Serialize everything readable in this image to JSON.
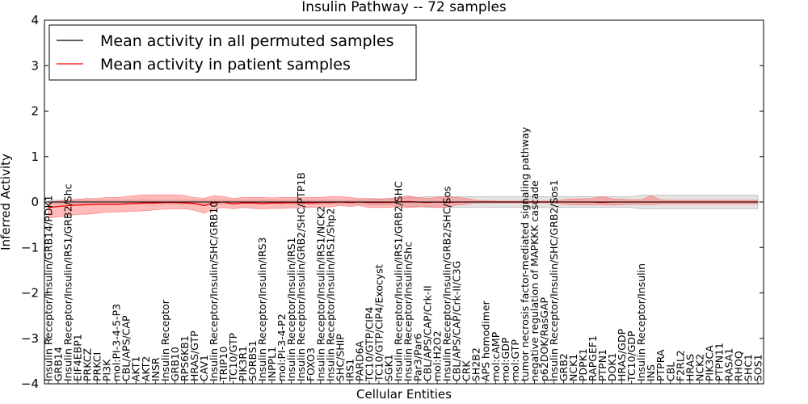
{
  "chart_data": {
    "type": "line",
    "title": "Insulin Pathway -- 72 samples",
    "xlabel": "Cellular Entities",
    "ylabel": "Inferred Activity",
    "ylim": [
      -4,
      4
    ],
    "yticks": [
      "−4",
      "−3",
      "−2",
      "−1",
      "0",
      "1",
      "2",
      "3",
      "4"
    ],
    "grid": false,
    "legend": {
      "position": "top-left",
      "entries": [
        {
          "label": "Mean activity in all permuted samples",
          "color": "#000000"
        },
        {
          "label": "Mean activity in patient samples",
          "color": "#ff0000"
        }
      ]
    },
    "categories": [
      "Insulin Receptor/Insulin/GRB14/PDK1",
      "GRB14",
      "Insulin Receptor/Insulin/IRS1/GRB2/Shc",
      "EIF4EBP1",
      "PRKCZ",
      "PRKCI",
      "PI3K",
      "mol:PI-3-4-5-P3",
      "CBL/APS/CAP",
      "AKT1",
      "AKT2",
      "INSR",
      "Insulin Receptor",
      "GRB10",
      "RPS6KB1",
      "HRAS/GTP",
      "CAV1",
      "Insulin Receptor/Insulin/SHC/GRB10",
      "TRIP10",
      "TC10/GTP",
      "PIK3R1",
      "SORBS1",
      "Insulin Receptor/Insulin/IRS3",
      "INPPL1",
      "mol:PI-3-4-P2",
      "Insulin Receptor/Insulin/IRS1",
      "Insulin Receptor/Insulin/GRB2/SHC/PTP1B",
      "FOXO3",
      "Insulin Receptor/Insulin/IRS1/NCK2",
      "Insulin Receptor/Insulin/IRS1/Shp2",
      "SHC/SHIP",
      "IRS1",
      "PARD6A",
      "TC10/GTP/CIP4",
      "TC10/GTP/CIP4/Exocyst",
      "SGK1",
      "Insulin Receptor/Insulin/IRS1/GRB2/SHC",
      "Insulin Receptor/Insulin/Shc",
      "Par3/Par6",
      "CBL/APS/CAP/Crk-II",
      "mol:H2O2",
      "Insulin Receptor/Insulin/GRB2/SHC/Sos",
      "CBL/APS/CAP/Crk-II/C3G",
      "CRK",
      "SH2B2",
      "APS homodimer",
      "mol:cAMP",
      "mol:GDP",
      "mol:GTP",
      "tumor necrosis factor-mediated signaling pathway",
      "negative regulation of MAPKKK cascade",
      "p62DOK/RasGAP",
      "Insulin Receptor/Insulin/SHC/GRB2/Sos1",
      "GRB2",
      "NCK1",
      "PDPK1",
      "RAPGEF1",
      "PTPN1",
      "DOK1",
      "HRAS/GDP",
      "TC10/GDP",
      "Insulin Receptor/Insulin",
      "INS",
      "PTPRA",
      "CBL",
      "F2RL2",
      "HRAS",
      "NCK2",
      "PIK3CA",
      "PTPN11",
      "RASA1",
      "RHOQ",
      "SHC1",
      "SOS1"
    ],
    "series": [
      {
        "name": "Mean activity in all permuted samples",
        "color": "#000000",
        "values": [
          0.0,
          0.0,
          0.0,
          0.0,
          0.0,
          0.0,
          0.0,
          0.0,
          0.0,
          0.0,
          0.0,
          0.0,
          0.0,
          0.0,
          0.0,
          0.0,
          0.0,
          0.0,
          0.0,
          0.0,
          0.0,
          0.0,
          0.0,
          0.0,
          0.0,
          0.0,
          0.0,
          0.0,
          0.0,
          0.0,
          0.0,
          0.0,
          0.0,
          0.0,
          0.0,
          0.0,
          0.0,
          0.0,
          0.0,
          0.0,
          0.0,
          0.0,
          0.0,
          0.0,
          0.0,
          0.0,
          0.0,
          0.0,
          0.0,
          0.0,
          0.0,
          0.0,
          0.0,
          0.0,
          0.0,
          0.0,
          0.0,
          0.0,
          0.0,
          0.0,
          0.0,
          0.0,
          0.0,
          0.0,
          0.0,
          0.0,
          0.0,
          0.0,
          0.0,
          0.0,
          0.0,
          0.0,
          0.0,
          0.0
        ],
        "band_low": [
          -0.04,
          -0.04,
          -0.04,
          -0.04,
          -0.04,
          -0.04,
          -0.04,
          -0.04,
          -0.04,
          -0.04,
          -0.04,
          -0.04,
          -0.04,
          -0.04,
          -0.04,
          -0.04,
          -0.04,
          -0.04,
          -0.04,
          -0.04,
          -0.04,
          -0.04,
          -0.04,
          -0.04,
          -0.04,
          -0.04,
          -0.04,
          -0.04,
          -0.04,
          -0.04,
          -0.04,
          -0.04,
          -0.04,
          -0.06,
          -0.06,
          -0.06,
          -0.08,
          -0.1,
          -0.1,
          -0.12,
          -0.12,
          -0.12,
          -0.12,
          -0.12,
          -0.12,
          -0.12,
          -0.12,
          -0.12,
          -0.12,
          -0.12,
          -0.12,
          -0.12,
          -0.12,
          -0.12,
          -0.12,
          -0.12,
          -0.12,
          -0.12,
          -0.12,
          -0.12,
          -0.12,
          -0.15,
          -0.15,
          -0.15,
          -0.15,
          -0.15,
          -0.15,
          -0.15,
          -0.15,
          -0.15,
          -0.15,
          -0.15,
          -0.15,
          -0.15
        ],
        "band_high": [
          0.04,
          0.04,
          0.04,
          0.04,
          0.04,
          0.04,
          0.04,
          0.04,
          0.04,
          0.04,
          0.04,
          0.04,
          0.04,
          0.04,
          0.04,
          0.04,
          0.04,
          0.04,
          0.04,
          0.04,
          0.04,
          0.04,
          0.04,
          0.04,
          0.04,
          0.04,
          0.04,
          0.04,
          0.04,
          0.04,
          0.04,
          0.04,
          0.04,
          0.06,
          0.06,
          0.06,
          0.08,
          0.1,
          0.1,
          0.12,
          0.12,
          0.12,
          0.12,
          0.12,
          0.12,
          0.12,
          0.12,
          0.12,
          0.12,
          0.12,
          0.12,
          0.12,
          0.12,
          0.12,
          0.12,
          0.12,
          0.12,
          0.12,
          0.12,
          0.12,
          0.12,
          0.15,
          0.15,
          0.15,
          0.15,
          0.15,
          0.15,
          0.15,
          0.15,
          0.15,
          0.15,
          0.15,
          0.15,
          0.15
        ]
      },
      {
        "name": "Mean activity in patient samples",
        "color": "#ff0000",
        "values": [
          -0.12,
          -0.1,
          -0.08,
          -0.07,
          -0.06,
          -0.05,
          -0.05,
          -0.05,
          -0.04,
          -0.03,
          -0.02,
          -0.02,
          -0.01,
          -0.01,
          -0.02,
          -0.03,
          -0.08,
          -0.02,
          0.0,
          -0.04,
          -0.02,
          -0.02,
          -0.03,
          -0.02,
          -0.02,
          -0.01,
          -0.02,
          -0.02,
          -0.01,
          -0.01,
          0.0,
          -0.01,
          0.0,
          -0.01,
          -0.01,
          -0.01,
          0.0,
          0.01,
          0.0,
          -0.01,
          0.0,
          -0.01,
          0.0,
          0.0,
          0.0,
          0.0,
          0.0,
          0.0,
          0.0,
          0.0,
          0.0,
          0.0,
          0.0,
          0.0,
          0.0,
          0.0,
          0.0,
          -0.01,
          0.0,
          0.0,
          0.0,
          0.0,
          0.0,
          0.0,
          0.0,
          0.0,
          0.0,
          0.0,
          0.0,
          0.0,
          0.0,
          0.0,
          0.0,
          0.0
        ],
        "band_low": [
          -0.35,
          -0.33,
          -0.3,
          -0.27,
          -0.27,
          -0.25,
          -0.22,
          -0.22,
          -0.21,
          -0.2,
          -0.19,
          -0.17,
          -0.16,
          -0.15,
          -0.15,
          -0.18,
          -0.25,
          -0.15,
          -0.12,
          -0.15,
          -0.12,
          -0.14,
          -0.15,
          -0.14,
          -0.14,
          -0.13,
          -0.13,
          -0.12,
          -0.11,
          -0.11,
          -0.08,
          -0.1,
          -0.08,
          -0.12,
          -0.12,
          -0.12,
          -0.1,
          -0.12,
          -0.11,
          -0.1,
          -0.12,
          -0.11,
          -0.07,
          -0.05,
          -0.02,
          -0.02,
          -0.02,
          -0.02,
          -0.02,
          -0.02,
          -0.02,
          -0.02,
          -0.02,
          -0.05,
          -0.06,
          -0.06,
          -0.06,
          -0.06,
          -0.07,
          -0.06,
          -0.05,
          -0.05,
          -0.06,
          -0.04,
          -0.04,
          -0.04,
          -0.04,
          -0.04,
          -0.04,
          -0.04,
          -0.04,
          -0.04,
          -0.04,
          -0.04
        ],
        "band_high": [
          0.0,
          0.02,
          0.04,
          0.06,
          0.08,
          0.08,
          0.1,
          0.1,
          0.12,
          0.14,
          0.16,
          0.16,
          0.16,
          0.16,
          0.14,
          0.1,
          0.08,
          0.14,
          0.12,
          0.08,
          0.1,
          0.1,
          0.1,
          0.09,
          0.1,
          0.1,
          0.1,
          0.1,
          0.1,
          0.12,
          0.12,
          0.1,
          0.08,
          0.08,
          0.07,
          0.08,
          0.1,
          0.14,
          0.1,
          0.08,
          0.1,
          0.12,
          0.1,
          0.08,
          0.04,
          0.03,
          0.02,
          0.02,
          0.02,
          0.02,
          0.02,
          0.02,
          0.02,
          0.05,
          0.07,
          0.07,
          0.08,
          0.12,
          0.07,
          0.06,
          0.05,
          0.05,
          0.14,
          0.05,
          0.04,
          0.04,
          0.04,
          0.04,
          0.04,
          0.04,
          0.04,
          0.04,
          0.04,
          0.04
        ]
      }
    ]
  }
}
